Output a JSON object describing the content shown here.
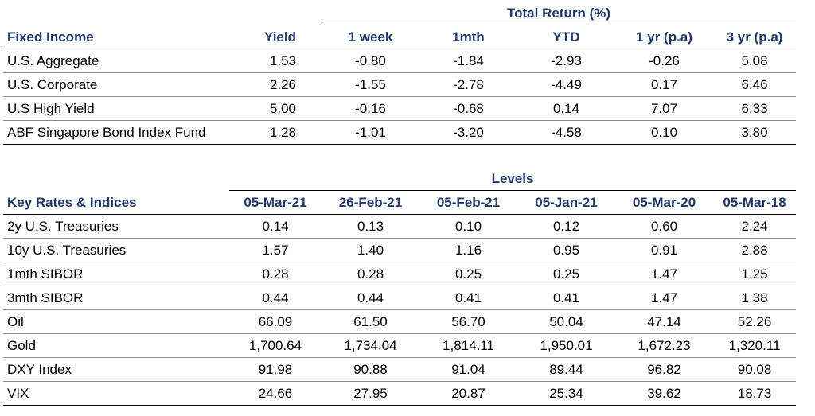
{
  "fixed_income": {
    "group_header": "Total Return (%)",
    "headers": [
      "Fixed Income",
      "Yield",
      "1 week",
      "1mth",
      "YTD",
      "1 yr (p.a)",
      "3 yr (p.a)"
    ],
    "rows": [
      [
        "U.S. Aggregate",
        "1.53",
        "-0.80",
        "-1.84",
        "-2.93",
        "-0.26",
        "5.08"
      ],
      [
        "U.S. Corporate",
        "2.26",
        "-1.55",
        "-2.78",
        "-4.49",
        "0.17",
        "6.46"
      ],
      [
        "U.S High Yield",
        "5.00",
        "-0.16",
        "-0.68",
        "0.14",
        "7.07",
        "6.33"
      ],
      [
        "ABF Singapore Bond Index Fund",
        "1.28",
        "-1.01",
        "-3.20",
        "-4.58",
        "0.10",
        "3.80"
      ]
    ]
  },
  "key_rates": {
    "group_header": "Levels",
    "headers": [
      "Key Rates & Indices",
      "05-Mar-21",
      "26-Feb-21",
      "05-Feb-21",
      "05-Jan-21",
      "05-Mar-20",
      "05-Mar-18"
    ],
    "rows": [
      [
        "2y U.S. Treasuries",
        "0.14",
        "0.13",
        "0.10",
        "0.12",
        "0.60",
        "2.24"
      ],
      [
        "10y U.S. Treasuries",
        "1.57",
        "1.40",
        "1.16",
        "0.95",
        "0.91",
        "2.88"
      ],
      [
        "1mth SIBOR",
        "0.28",
        "0.28",
        "0.25",
        "0.25",
        "1.47",
        "1.25"
      ],
      [
        "3mth SIBOR",
        "0.44",
        "0.44",
        "0.41",
        "0.41",
        "1.47",
        "1.38"
      ],
      [
        "Oil",
        "66.09",
        "61.50",
        "56.70",
        "50.04",
        "47.14",
        "52.26"
      ],
      [
        "Gold",
        "1,700.64",
        "1,734.04",
        "1,814.11",
        "1,950.01",
        "1,672.23",
        "1,320.11"
      ],
      [
        "DXY Index",
        "91.98",
        "90.88",
        "91.04",
        "89.44",
        "96.82",
        "90.08"
      ],
      [
        "VIX",
        "24.66",
        "27.95",
        "20.87",
        "25.34",
        "39.62",
        "18.73"
      ]
    ]
  }
}
